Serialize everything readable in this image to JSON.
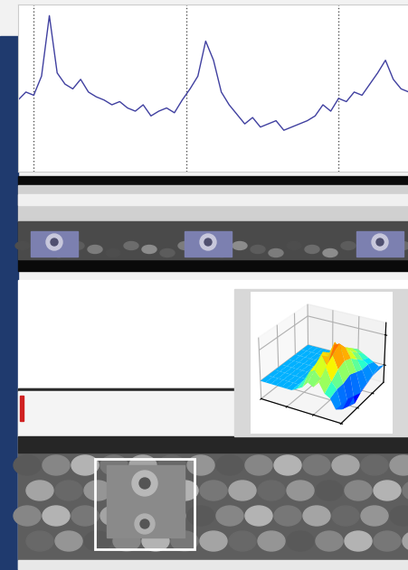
{
  "chart_data": [
    {
      "type": "line",
      "x": [
        0,
        2,
        4,
        6,
        8,
        10,
        12,
        14,
        16,
        18,
        20,
        22,
        24,
        26,
        28,
        30,
        32,
        34,
        36,
        38,
        40,
        42,
        44,
        46,
        48,
        50,
        52,
        54,
        56,
        58,
        60,
        62,
        64,
        66,
        68,
        70,
        72,
        74,
        76,
        78,
        80,
        82,
        84,
        86,
        88,
        90,
        92,
        94,
        96,
        98,
        100
      ],
      "values": [
        45,
        50,
        48,
        60,
        98,
        62,
        55,
        52,
        58,
        50,
        47,
        45,
        42,
        44,
        40,
        38,
        42,
        35,
        38,
        40,
        37,
        45,
        52,
        60,
        82,
        70,
        50,
        42,
        36,
        30,
        34,
        28,
        30,
        32,
        26,
        28,
        30,
        32,
        35,
        42,
        38,
        46,
        44,
        50,
        48,
        55,
        62,
        70,
        58,
        52,
        50
      ],
      "xlim": [
        0,
        100
      ],
      "ylim": [
        0,
        105
      ],
      "xticks": [
        4,
        43,
        82
      ],
      "grid": true,
      "tick_labels": false,
      "color": "#4040a0",
      "line_style": "solid"
    },
    {
      "type": "surface",
      "x": [
        0,
        1,
        2,
        3,
        4,
        5,
        6,
        7,
        8,
        9,
        10,
        11,
        12,
        13,
        14,
        15
      ],
      "y": [
        0,
        1,
        2,
        3,
        4,
        5,
        6,
        7
      ],
      "z": [
        [
          0,
          0,
          0,
          0,
          0,
          0,
          0,
          0.5,
          1,
          2,
          1.5,
          2.5,
          1,
          0.5,
          -1,
          0
        ],
        [
          0,
          0,
          0,
          0,
          0,
          0,
          0,
          1,
          2.5,
          3,
          2,
          4,
          2,
          1,
          -2,
          0
        ],
        [
          0,
          0,
          0,
          0,
          0,
          0,
          0,
          1.5,
          3,
          4.5,
          3,
          5,
          3,
          1,
          -2.5,
          -0.5
        ],
        [
          0,
          0,
          0,
          0,
          0,
          0,
          0,
          2,
          4,
          3.5,
          5.5,
          6,
          3.5,
          1.5,
          -3,
          -1
        ],
        [
          0,
          0,
          0,
          0,
          0,
          0,
          0,
          1.5,
          3,
          5,
          4,
          4.5,
          3,
          1,
          -2,
          -0.5
        ],
        [
          0,
          0,
          0,
          0,
          0,
          0,
          0,
          1,
          2.5,
          3,
          3.5,
          3,
          2,
          0.5,
          -1.5,
          0
        ],
        [
          0,
          0,
          0,
          0,
          0,
          0,
          0,
          0.5,
          1.5,
          2,
          2.5,
          2,
          1,
          0.5,
          -1,
          0
        ],
        [
          0,
          0,
          0,
          0,
          0,
          0,
          0,
          0.5,
          1,
          1,
          1.5,
          1,
          0.5,
          0,
          -0.5,
          0
        ]
      ],
      "xlim": [
        0,
        15
      ],
      "ylim": [
        0,
        7
      ],
      "zlim": [
        -3,
        7
      ],
      "tick_labels": false
    }
  ]
}
